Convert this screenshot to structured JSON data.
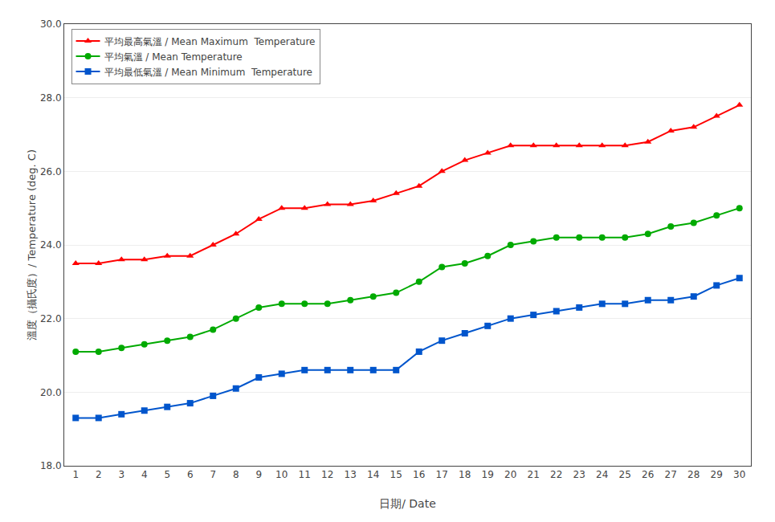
{
  "chart_data": {
    "type": "line",
    "x": [
      1,
      2,
      3,
      4,
      5,
      6,
      7,
      8,
      9,
      10,
      11,
      12,
      13,
      14,
      15,
      16,
      17,
      18,
      19,
      20,
      21,
      22,
      23,
      24,
      25,
      26,
      27,
      28,
      29,
      30
    ],
    "series": [
      {
        "name": "平均最高氣溫 / Mean Maximum  Temperature",
        "color": "#ff0000",
        "marker": "triangle-up",
        "values": [
          23.5,
          23.5,
          23.6,
          23.6,
          23.7,
          23.7,
          24.0,
          24.3,
          24.7,
          25.0,
          25.0,
          25.1,
          25.1,
          25.2,
          25.4,
          25.6,
          26.0,
          26.3,
          26.5,
          26.7,
          26.7,
          26.7,
          26.7,
          26.7,
          26.7,
          26.8,
          27.1,
          27.2,
          27.5,
          27.8
        ]
      },
      {
        "name": "平均氣溫 / Mean Temperature",
        "color": "#00aa00",
        "marker": "circle",
        "values": [
          21.1,
          21.1,
          21.2,
          21.3,
          21.4,
          21.5,
          21.7,
          22.0,
          22.3,
          22.4,
          22.4,
          22.4,
          22.5,
          22.6,
          22.7,
          23.0,
          23.4,
          23.5,
          23.7,
          24.0,
          24.1,
          24.2,
          24.2,
          24.2,
          24.2,
          24.3,
          24.5,
          24.6,
          24.8,
          25.0
        ]
      },
      {
        "name": "平均最低氣溫 / Mean Minimum  Temperature",
        "color": "#0055cc",
        "marker": "square",
        "values": [
          19.3,
          19.3,
          19.4,
          19.5,
          19.6,
          19.7,
          19.9,
          20.1,
          20.4,
          20.5,
          20.6,
          20.6,
          20.6,
          20.6,
          20.6,
          21.1,
          21.4,
          21.6,
          21.8,
          22.0,
          22.1,
          22.2,
          22.3,
          22.4,
          22.4,
          22.5,
          22.5,
          22.6,
          22.9,
          23.1
        ]
      }
    ],
    "x_label": "日期/ Date",
    "y_label": "溫度（攝氏度）/ Temperature (deg. C)",
    "xlim": [
      0.5,
      30.5
    ],
    "xticks": [
      1,
      2,
      3,
      4,
      5,
      6,
      7,
      8,
      9,
      10,
      11,
      12,
      13,
      14,
      15,
      16,
      17,
      18,
      19,
      20,
      21,
      22,
      23,
      24,
      25,
      26,
      27,
      28,
      29,
      30
    ],
    "ylim": [
      18.0,
      30.0
    ],
    "yticks": [
      {
        "value": 18.0,
        "label": "18.0"
      },
      {
        "value": 20.0,
        "label": "20.0"
      },
      {
        "value": 22.0,
        "label": "22.0"
      },
      {
        "value": 24.0,
        "label": "24.0"
      },
      {
        "value": 26.0,
        "label": "26.0"
      },
      {
        "value": 28.0,
        "label": "28.0"
      },
      {
        "value": 30.0,
        "label": "30.0"
      }
    ],
    "grid": true,
    "legend": "upper left"
  }
}
